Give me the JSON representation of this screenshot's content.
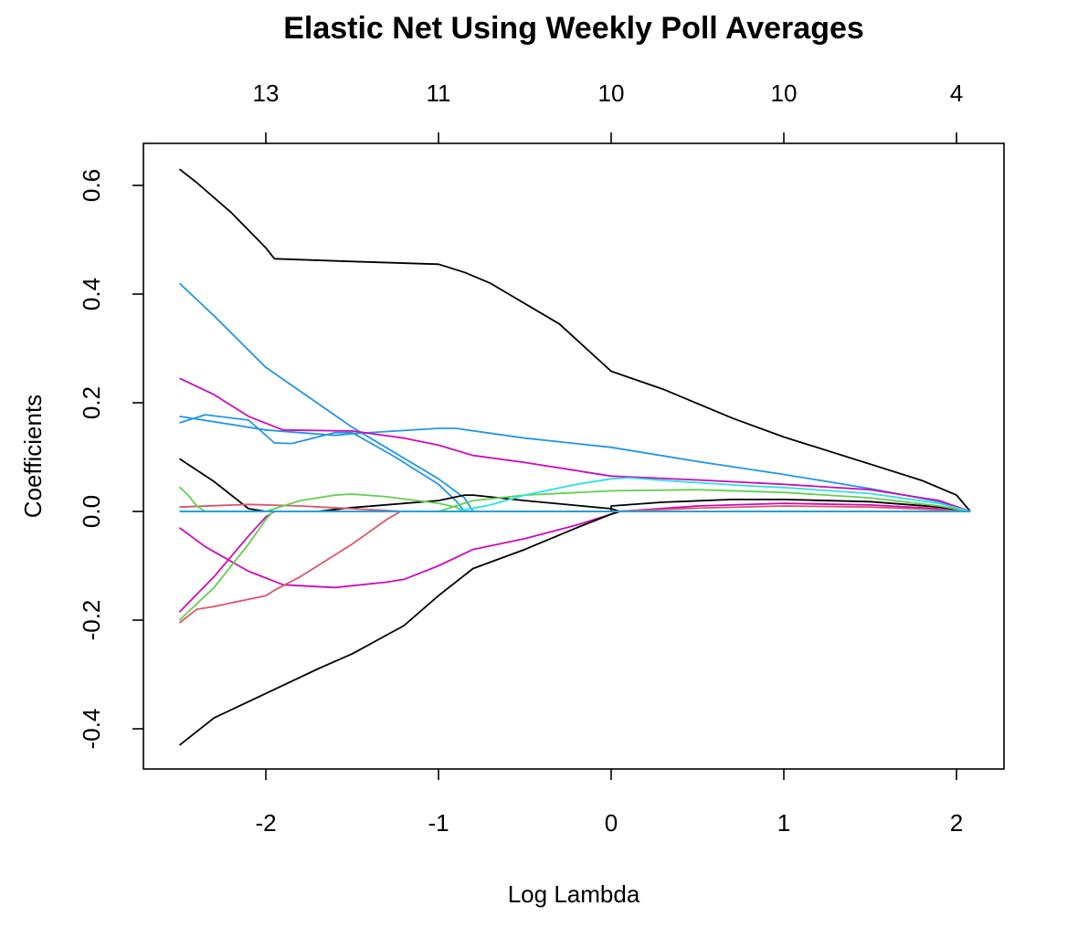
{
  "chart_data": {
    "type": "line",
    "title": "Elastic Net Using Weekly Poll Averages",
    "xlabel": "Log Lambda",
    "ylabel": "Coefficients",
    "xlim": [
      -2.5,
      2.1
    ],
    "ylim": [
      -0.43,
      0.64
    ],
    "x_ticks": [
      -2,
      -1,
      0,
      1,
      2
    ],
    "x_tick_labels": [
      "-2",
      "-1",
      "0",
      "1",
      "2"
    ],
    "y_ticks": [
      -0.4,
      -0.2,
      0.0,
      0.2,
      0.4,
      0.6
    ],
    "y_tick_labels": [
      "-0.4",
      "-0.2",
      "0.0",
      "0.2",
      "0.4",
      "0.6"
    ],
    "top_ticks": [
      -2,
      -1,
      0,
      1,
      2
    ],
    "top_tick_labels": [
      "13",
      "11",
      "10",
      "10",
      "4"
    ],
    "grid": false,
    "legend": "none",
    "series": [
      {
        "color": "#000000",
        "points": [
          [
            -2.5,
            0.63
          ],
          [
            -2.4,
            0.605
          ],
          [
            -2.2,
            0.55
          ],
          [
            -2.0,
            0.485
          ],
          [
            -1.95,
            0.465
          ],
          [
            -1.5,
            0.46
          ],
          [
            -1.0,
            0.455
          ],
          [
            -0.85,
            0.44
          ],
          [
            -0.7,
            0.42
          ],
          [
            -0.3,
            0.345
          ],
          [
            0.0,
            0.258
          ],
          [
            0.3,
            0.225
          ],
          [
            0.7,
            0.172
          ],
          [
            1.0,
            0.137
          ],
          [
            1.5,
            0.087
          ],
          [
            1.8,
            0.057
          ],
          [
            2.0,
            0.03
          ],
          [
            2.08,
            0.0
          ]
        ]
      },
      {
        "color": "#2297E6",
        "points": [
          [
            -2.5,
            0.42
          ],
          [
            -2.3,
            0.36
          ],
          [
            -2.0,
            0.265
          ],
          [
            -1.5,
            0.155
          ],
          [
            -1.0,
            0.06
          ],
          [
            -0.85,
            0.025
          ],
          [
            -0.8,
            0.0
          ],
          [
            2.08,
            0.0
          ]
        ]
      },
      {
        "color": "#2297E6",
        "points": [
          [
            -2.5,
            0.175
          ],
          [
            -2.2,
            0.16
          ],
          [
            -2.0,
            0.15
          ],
          [
            -1.6,
            0.14
          ],
          [
            -1.5,
            0.143
          ],
          [
            -1.0,
            0.153
          ],
          [
            -0.9,
            0.153
          ],
          [
            -0.5,
            0.135
          ],
          [
            0.0,
            0.118
          ],
          [
            0.5,
            0.092
          ],
          [
            1.0,
            0.068
          ],
          [
            1.5,
            0.042
          ],
          [
            1.9,
            0.018
          ],
          [
            2.08,
            0.0
          ]
        ]
      },
      {
        "color": "#2297E6",
        "points": [
          [
            -2.5,
            0.163
          ],
          [
            -2.35,
            0.178
          ],
          [
            -2.1,
            0.168
          ],
          [
            -1.95,
            0.126
          ],
          [
            -1.85,
            0.125
          ],
          [
            -1.6,
            0.145
          ],
          [
            -1.5,
            0.145
          ],
          [
            -1.25,
            0.1
          ],
          [
            -1.0,
            0.05
          ],
          [
            -0.9,
            0.02
          ],
          [
            -0.85,
            0.0
          ],
          [
            2.08,
            0.0
          ]
        ]
      },
      {
        "color": "#CD0BBC",
        "points": [
          [
            -2.5,
            0.245
          ],
          [
            -2.3,
            0.215
          ],
          [
            -2.1,
            0.175
          ],
          [
            -1.9,
            0.15
          ],
          [
            -1.5,
            0.148
          ],
          [
            -1.2,
            0.135
          ],
          [
            -1.0,
            0.122
          ],
          [
            -0.8,
            0.103
          ],
          [
            -0.5,
            0.09
          ],
          [
            0.0,
            0.065
          ],
          [
            0.5,
            0.058
          ],
          [
            1.0,
            0.05
          ],
          [
            1.5,
            0.04
          ],
          [
            1.9,
            0.02
          ],
          [
            2.08,
            0.0
          ]
        ]
      },
      {
        "color": "#CD0BBC",
        "points": [
          [
            -2.5,
            -0.03
          ],
          [
            -2.35,
            -0.065
          ],
          [
            -2.1,
            -0.11
          ],
          [
            -1.9,
            -0.135
          ],
          [
            -1.6,
            -0.14
          ],
          [
            -1.3,
            -0.13
          ],
          [
            -1.2,
            -0.125
          ],
          [
            -1.0,
            -0.1
          ],
          [
            -0.8,
            -0.07
          ],
          [
            -0.5,
            -0.05
          ],
          [
            -0.2,
            -0.025
          ],
          [
            0.0,
            -0.005
          ],
          [
            0.05,
            0.0
          ],
          [
            0.5,
            0.01
          ],
          [
            1.0,
            0.015
          ],
          [
            1.5,
            0.012
          ],
          [
            1.9,
            0.005
          ],
          [
            2.08,
            0.0
          ]
        ]
      },
      {
        "color": "#CD0BBC",
        "points": [
          [
            -2.5,
            -0.185
          ],
          [
            -2.3,
            -0.12
          ],
          [
            -2.1,
            -0.045
          ],
          [
            -2.0,
            -0.01
          ],
          [
            -1.95,
            0.0
          ],
          [
            2.08,
            0.0
          ]
        ]
      },
      {
        "color": "#000000",
        "points": [
          [
            -2.5,
            -0.43
          ],
          [
            -2.3,
            -0.38
          ],
          [
            -2.0,
            -0.335
          ],
          [
            -1.7,
            -0.29
          ],
          [
            -1.5,
            -0.262
          ],
          [
            -1.2,
            -0.21
          ],
          [
            -1.0,
            -0.155
          ],
          [
            -0.8,
            -0.105
          ],
          [
            -0.5,
            -0.07
          ],
          [
            -0.2,
            -0.03
          ],
          [
            0.0,
            -0.005
          ],
          [
            0.05,
            0.0
          ],
          [
            2.08,
            0.0
          ]
        ]
      },
      {
        "color": "#000000",
        "points": [
          [
            -2.5,
            0.097
          ],
          [
            -2.3,
            0.055
          ],
          [
            -2.1,
            0.005
          ],
          [
            -2.0,
            0.0
          ],
          [
            -1.7,
            0.0
          ],
          [
            -1.5,
            0.007
          ],
          [
            -1.0,
            0.02
          ],
          [
            -0.85,
            0.03
          ],
          [
            -0.8,
            0.03
          ],
          [
            -0.5,
            0.02
          ],
          [
            0.0,
            0.005
          ],
          [
            0.05,
            0.0
          ],
          [
            2.08,
            0.0
          ]
        ]
      },
      {
        "color": "#000000",
        "points": [
          [
            -2.5,
            0.0
          ],
          [
            0.0,
            0.0
          ],
          [
            0.0,
            0.01
          ],
          [
            0.3,
            0.017
          ],
          [
            0.7,
            0.022
          ],
          [
            1.0,
            0.022
          ],
          [
            1.5,
            0.018
          ],
          [
            1.9,
            0.008
          ],
          [
            2.08,
            0.0
          ]
        ]
      },
      {
        "color": "#DF536B",
        "points": [
          [
            -2.5,
            0.008
          ],
          [
            -2.1,
            0.013
          ],
          [
            -1.8,
            0.01
          ],
          [
            -1.5,
            0.005
          ],
          [
            -1.2,
            0.0
          ],
          [
            2.08,
            0.0
          ]
        ]
      },
      {
        "color": "#DF536B",
        "points": [
          [
            -2.5,
            -0.205
          ],
          [
            -2.4,
            -0.18
          ],
          [
            -2.3,
            -0.175
          ],
          [
            -2.0,
            -0.155
          ],
          [
            -1.95,
            -0.145
          ],
          [
            -1.8,
            -0.12
          ],
          [
            -1.5,
            -0.06
          ],
          [
            -1.3,
            -0.015
          ],
          [
            -1.22,
            0.0
          ],
          [
            2.08,
            0.0
          ]
        ]
      },
      {
        "color": "#DF536B",
        "points": [
          [
            -2.5,
            0.0
          ],
          [
            0.0,
            0.0
          ],
          [
            0.5,
            0.006
          ],
          [
            1.0,
            0.01
          ],
          [
            1.5,
            0.008
          ],
          [
            1.9,
            0.003
          ],
          [
            2.08,
            0.0
          ]
        ]
      },
      {
        "color": "#61D04F",
        "points": [
          [
            -2.5,
            0.045
          ],
          [
            -2.45,
            0.03
          ],
          [
            -2.4,
            0.01
          ],
          [
            -2.35,
            0.0
          ],
          [
            2.08,
            0.0
          ]
        ]
      },
      {
        "color": "#61D04F",
        "points": [
          [
            -2.5,
            -0.2
          ],
          [
            -2.3,
            -0.14
          ],
          [
            -2.1,
            -0.06
          ],
          [
            -2.0,
            -0.015
          ],
          [
            -1.96,
            0.0
          ],
          [
            2.08,
            0.0
          ]
        ]
      },
      {
        "color": "#61D04F",
        "points": [
          [
            -2.5,
            0.0
          ],
          [
            -2.0,
            0.0
          ],
          [
            -1.8,
            0.02
          ],
          [
            -1.6,
            0.03
          ],
          [
            -1.5,
            0.032
          ],
          [
            -1.3,
            0.027
          ],
          [
            -1.0,
            0.015
          ],
          [
            -0.9,
            0.008
          ],
          [
            -0.85,
            0.0
          ],
          [
            2.08,
            0.0
          ]
        ]
      },
      {
        "color": "#61D04F",
        "points": [
          [
            -2.5,
            0.0
          ],
          [
            -1.0,
            0.0
          ],
          [
            -0.8,
            0.02
          ],
          [
            -0.5,
            0.03
          ],
          [
            0.0,
            0.038
          ],
          [
            0.5,
            0.04
          ],
          [
            1.0,
            0.035
          ],
          [
            1.5,
            0.025
          ],
          [
            1.9,
            0.01
          ],
          [
            2.08,
            0.0
          ]
        ]
      },
      {
        "color": "#28E2E5",
        "points": [
          [
            -2.5,
            0.0
          ],
          [
            -0.9,
            0.0
          ],
          [
            -0.7,
            0.012
          ],
          [
            -0.5,
            0.03
          ],
          [
            -0.2,
            0.05
          ],
          [
            0.0,
            0.06
          ],
          [
            0.1,
            0.062
          ],
          [
            0.4,
            0.055
          ],
          [
            0.8,
            0.047
          ],
          [
            1.0,
            0.044
          ],
          [
            1.5,
            0.033
          ],
          [
            1.9,
            0.015
          ],
          [
            2.08,
            0.0
          ]
        ]
      },
      {
        "color": "#2297E6",
        "points": [
          [
            -2.5,
            0.0
          ],
          [
            2.08,
            0.0
          ]
        ]
      }
    ]
  }
}
